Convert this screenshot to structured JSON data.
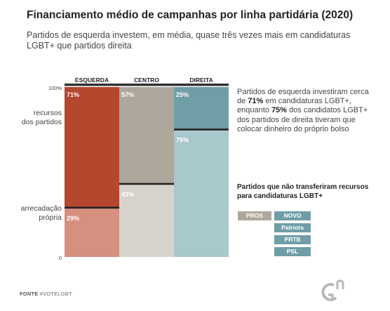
{
  "title": "Financiamento médio de campanhas por linha partidária (2020)",
  "subtitle": "Partidos de esquerda investem, em média, quase três vezes mais em candidaturas LGBT+ que partidos direita",
  "annotation": {
    "line1": "Partidos de esquerda investiram cerca de ",
    "highlight1": "71%",
    "line2": " em candidaturas LGBT+, enquanto ",
    "highlight2": "75%",
    "line3": " dos candidatos LGBT+ dos partidos de direita tiveram que colocar dinheiro do próprio bolso"
  },
  "non_transfer": {
    "title": "Partidos que não transferiram recursos para candidaturas LGBT+",
    "centro": [
      "PROS"
    ],
    "direita": [
      "NOVO",
      "Patriota",
      "PRTB",
      "PSL"
    ]
  },
  "source": {
    "label": "FONTE",
    "value": "#VOTELGBT"
  },
  "colors": {
    "esquerda_top": "#b5472f",
    "esquerda_bottom": "#d6907f",
    "centro_top": "#aea89c",
    "centro_bottom": "#d7d3cc",
    "direita_top": "#6f9ea7",
    "direita_bottom": "#a9c8cc",
    "divider": "#222222",
    "header_bar": "#333333",
    "logo": "#b9b9b9"
  },
  "chart_data": {
    "type": "bar",
    "stacked": true,
    "categories": [
      "ESQUERDA",
      "CENTRO",
      "DIREITA"
    ],
    "series": [
      {
        "name": "recursos dos partidos",
        "values": [
          71,
          57,
          25
        ],
        "labels": [
          "71%",
          "57%",
          "25%"
        ]
      },
      {
        "name": "arrecadação própria",
        "values": [
          29,
          43,
          75
        ],
        "labels": [
          "29%",
          "43%",
          "75%"
        ]
      }
    ],
    "ylim": [
      0,
      100
    ],
    "y_ticks": [
      "100%",
      "0"
    ],
    "y_labels": {
      "top": "recursos\ndos partidos",
      "bottom": "arrecadação\nprópria"
    }
  }
}
